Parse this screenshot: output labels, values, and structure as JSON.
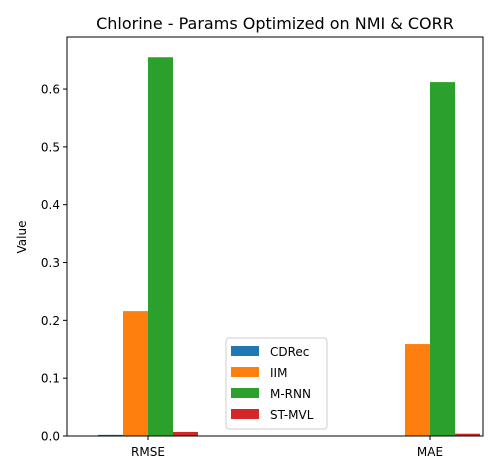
{
  "chart_data": {
    "type": "bar",
    "title": "Chlorine - Params Optimized on NMI & CORR",
    "xlabel": "",
    "ylabel": "Value",
    "categories": [
      "RMSE",
      "MAE"
    ],
    "ylim": [
      0,
      0.69
    ],
    "yticks": [
      0.0,
      0.1,
      0.2,
      0.3,
      0.4,
      0.5,
      0.6
    ],
    "ytick_labels": [
      "0.0",
      "0.1",
      "0.2",
      "0.3",
      "0.4",
      "0.5",
      "0.6"
    ],
    "grid": false,
    "legend_position": "lower-center",
    "series": [
      {
        "name": "CDRec",
        "color": "#1f77b4",
        "values": [
          0.002,
          0.0
        ]
      },
      {
        "name": "IIM",
        "color": "#ff7f0e",
        "values": [
          0.216,
          0.159
        ]
      },
      {
        "name": "M-RNN",
        "color": "#2ca02c",
        "values": [
          0.655,
          0.612
        ]
      },
      {
        "name": "ST-MVL",
        "color": "#d62728",
        "values": [
          0.007,
          0.004
        ]
      }
    ]
  }
}
